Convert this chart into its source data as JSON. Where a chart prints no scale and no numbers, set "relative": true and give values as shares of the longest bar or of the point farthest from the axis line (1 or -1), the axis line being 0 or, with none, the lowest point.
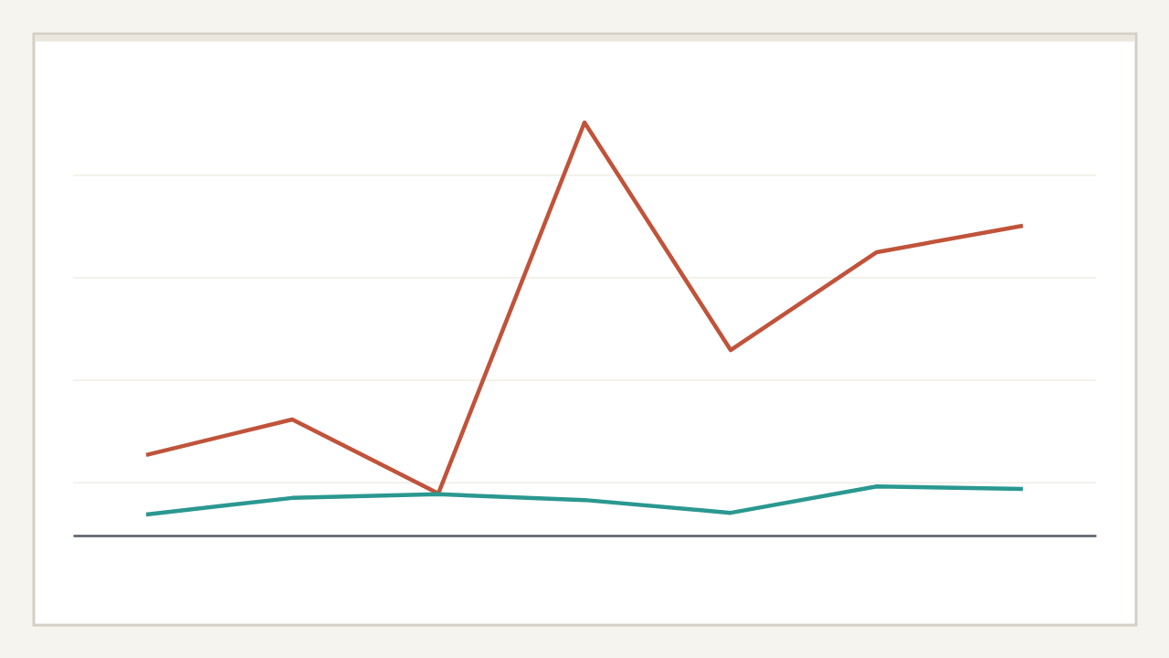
{
  "chart_data": {
    "type": "line",
    "relative": true,
    "categories": [
      null,
      null,
      null,
      null,
      null,
      null,
      null
    ],
    "series": [
      {
        "color": "#c0533a",
        "values": [
          0.195,
          0.281,
          0.102,
          1,
          0.449,
          0.686,
          0.75
        ]
      },
      {
        "color": "#2a9890",
        "values": [
          0.051,
          0.091,
          0.1,
          0.086,
          0.055,
          0.119,
          0.113
        ]
      }
    ],
    "ref_lines": [
      {
        "axis": "y",
        "value": 0.128,
        "color": "#e6e4d8"
      },
      {
        "axis": "y",
        "value": 0.376,
        "color": "#e6e4d8"
      },
      {
        "axis": "y",
        "value": 0.624,
        "color": "#e6e4d8"
      },
      {
        "axis": "y",
        "value": 0.872,
        "color": "#e6e4d8"
      }
    ],
    "marker": "none",
    "line_style": "solid"
  }
}
